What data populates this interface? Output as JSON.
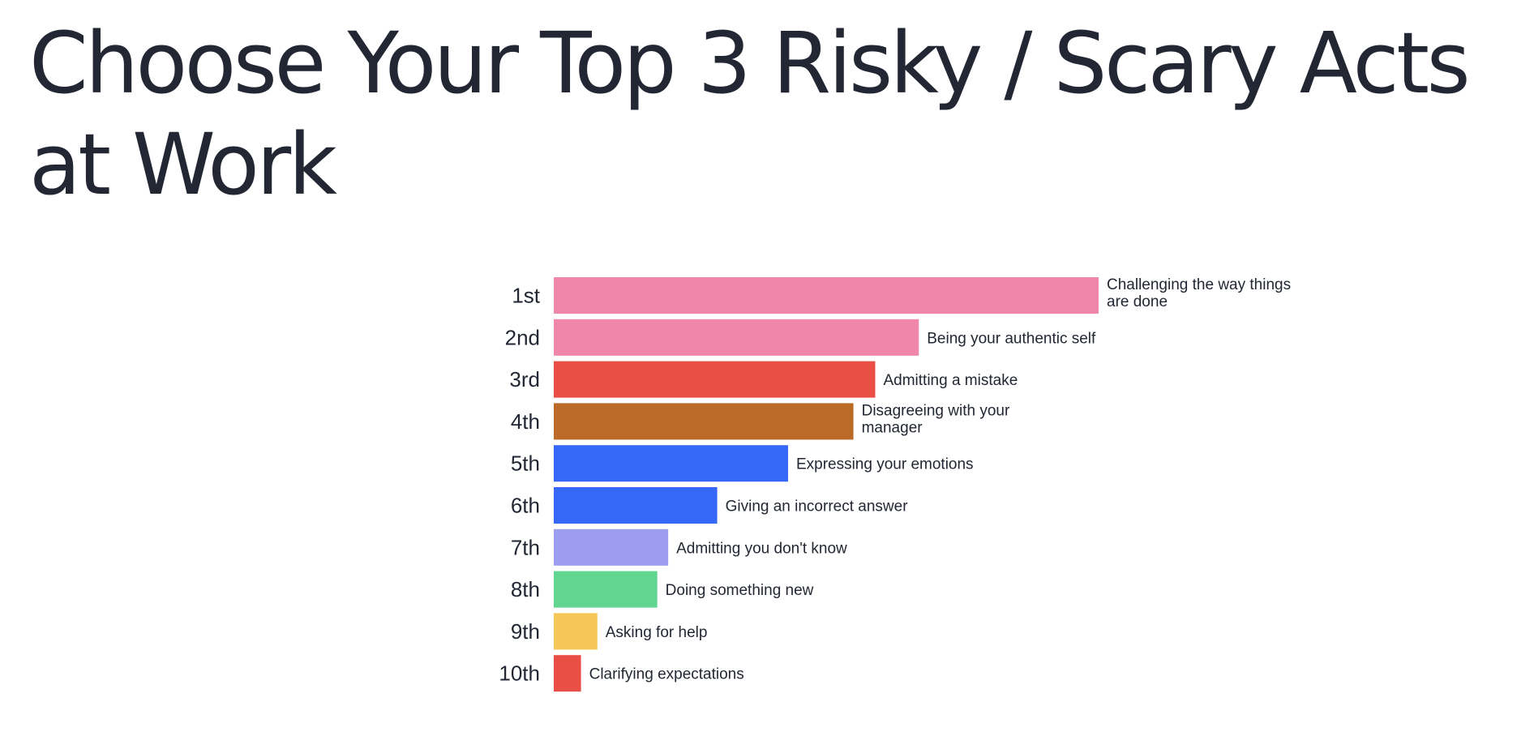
{
  "title": "Choose Your Top 3 Risky / Scary Acts at Work",
  "chart_data": {
    "type": "bar",
    "orientation": "horizontal",
    "title": "Choose Your Top 3 Risky / Scary Acts at Work",
    "xlabel": "",
    "ylabel": "",
    "grid": false,
    "legend": "none",
    "categories": [
      "1st",
      "2nd",
      "3rd",
      "4th",
      "5th",
      "6th",
      "7th",
      "8th",
      "9th",
      "10th"
    ],
    "bar_labels": [
      [
        "Challenging the way things",
        "are done"
      ],
      [
        "Being your authentic self"
      ],
      [
        "Admitting a mistake"
      ],
      [
        "Disagreeing with your",
        "manager"
      ],
      [
        "Expressing your emotions"
      ],
      [
        "Giving an incorrect answer"
      ],
      [
        "Admitting you don't know"
      ],
      [
        "Doing something new"
      ],
      [
        "Asking for help"
      ],
      [
        "Clarifying expectations"
      ]
    ],
    "values": [
      100,
      67,
      59,
      55,
      43,
      30,
      21,
      19,
      8,
      5
    ],
    "xlim": [
      0,
      100
    ],
    "colors": [
      "#F086AA",
      "#F086AA",
      "#EA4F46",
      "#BC6A28",
      "#3568F6",
      "#3568F6",
      "#9C9CF0",
      "#62D691",
      "#F4C756",
      "#EA4F46"
    ]
  }
}
